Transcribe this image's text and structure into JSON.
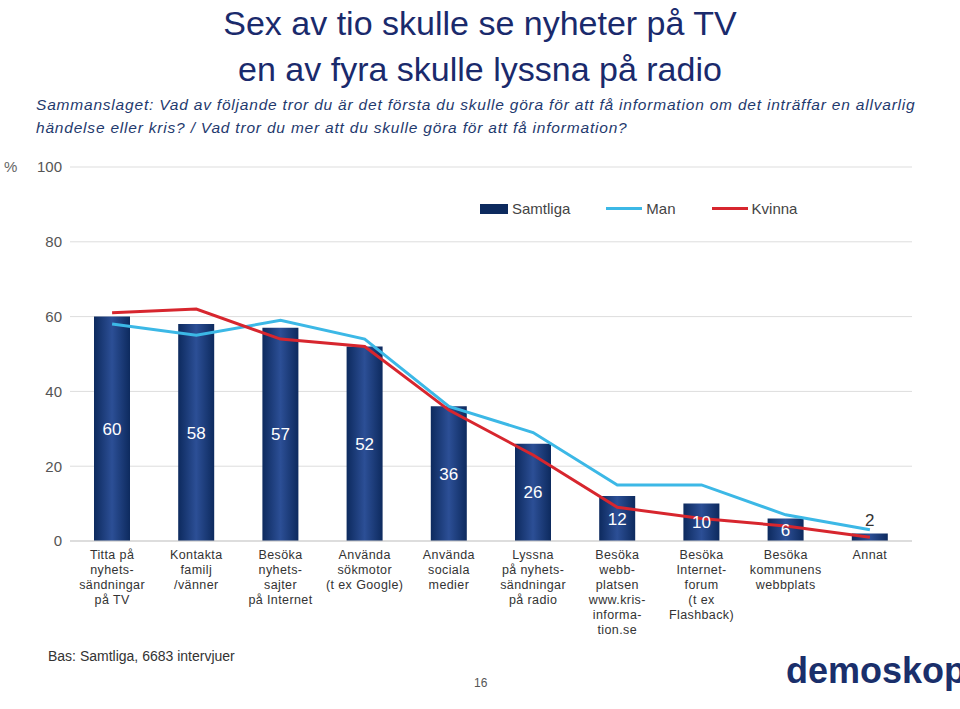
{
  "chart_data": {
    "type": "bar",
    "title": "Sex av tio skulle se nyheter på TV\nen av fyra skulle lyssna på radio",
    "subtitle": "Sammanslaget: Vad av följande tror du är det första du skulle göra för att få information om det inträffar en allvarlig händelse eller kris? / Vad tror du mer att du skulle göra för att få information?",
    "y_label": "%",
    "categories": [
      "Titta på\nnyhets-\nsändningar\npå TV",
      "Kontakta\nfamilj\n/vänner",
      "Besöka\nnyhets-\nsajter\npå Internet",
      "Använda\nsökmotor\n(t ex Google)",
      "Använda\nsociala\nmedier",
      "Lyssna\npå nyhets-\nsändningar\npå radio",
      "Besöka\nwebb-\nplatsen\nwww.kris-\ninforma-\ntion.se",
      "Besöka\nInternet-\nforum\n(t ex\nFlashback)",
      "Besöka\nkommunens\nwebbplats",
      "Annat"
    ],
    "series": [
      {
        "name": "Samtliga",
        "type": "bar",
        "color": "#0d2a5e",
        "data_labels": true,
        "values": [
          60,
          58,
          57,
          52,
          36,
          26,
          12,
          10,
          6,
          2
        ]
      },
      {
        "name": "Man",
        "type": "line",
        "color": "#3cb8e6",
        "values": [
          58,
          55,
          59,
          54,
          36,
          29,
          15,
          15,
          7,
          3
        ]
      },
      {
        "name": "Kvinna",
        "type": "line",
        "color": "#d7262e",
        "values": [
          61,
          62,
          54,
          52,
          35,
          23,
          9,
          6,
          4,
          1
        ]
      }
    ],
    "ylim": [
      0,
      100
    ],
    "yticks": [
      0,
      20,
      40,
      60,
      80,
      100
    ],
    "grid": true,
    "legend": "top",
    "note": "Bas: Samtliga, 6683 intervjuer",
    "page": "16",
    "logo": "demoskop"
  }
}
